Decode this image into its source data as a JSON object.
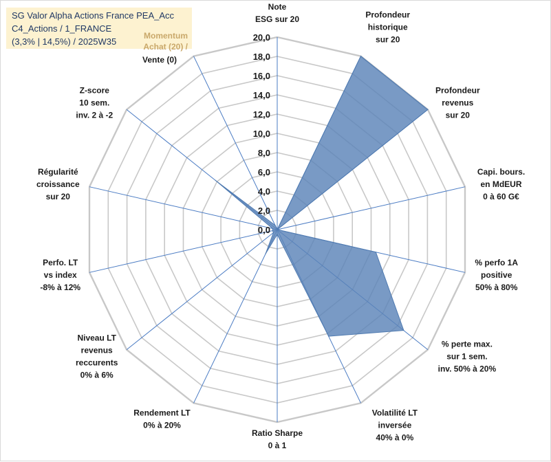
{
  "title": {
    "line1": "SG Valor Alpha Actions France PEA_Acc",
    "line2": "C4_Actions / 1_FRANCE",
    "line3": "(3,3% | 14,5%) / 2025W35",
    "tag1": "Momentum",
    "tag2": "Achat (20) /",
    "tag3": "Vente (0)"
  },
  "colors": {
    "fill": "#5b84b8",
    "stroke": "#4f7ab0",
    "grid": "#c8c8c8",
    "spoke": "#4a7bc3"
  },
  "chart_data": {
    "type": "radar",
    "r_ticks": [
      "0,0",
      "2,0",
      "4,0",
      "6,0",
      "8,0",
      "10,0",
      "12,0",
      "14,0",
      "16,0",
      "18,0",
      "20,0"
    ],
    "r_max": 20,
    "grid": true,
    "axes": [
      {
        "label": [
          "Note",
          "ESG sur 20"
        ]
      },
      {
        "label": [
          "Profondeur",
          "historique",
          "sur 20"
        ]
      },
      {
        "label": [
          "Profondeur",
          "revenus",
          "sur 20"
        ]
      },
      {
        "label": [
          "Capi. bours.",
          "en MdEUR",
          "0 à 60 G€"
        ]
      },
      {
        "label": [
          "% perfo 1A",
          "positive",
          "50% à 80%"
        ]
      },
      {
        "label": [
          "% perte max.",
          "sur 1 sem.",
          "inv. 50% à 20%"
        ]
      },
      {
        "label": [
          "Volatilité LT",
          "inversée",
          "40% à 0%"
        ]
      },
      {
        "label": [
          "Ratio Sharpe",
          "0 à 1"
        ]
      },
      {
        "label": [
          "Rendement LT",
          "0% à 20%"
        ]
      },
      {
        "label": [
          "Niveau LT",
          "revenus",
          "reccurents",
          "0% à 6%"
        ]
      },
      {
        "label": [
          "Perfo. LT",
          "vs index",
          "-8% à 12%"
        ]
      },
      {
        "label": [
          "Régularité",
          "croissance",
          "sur 20"
        ]
      },
      {
        "label": [
          "Z-score",
          "10 sem.",
          "inv. 2 à -2"
        ]
      },
      {
        "label": []
      }
    ],
    "series": [
      {
        "values": [
          0,
          20,
          20,
          0,
          10.5,
          16.8,
          12.3,
          0.5,
          2.8,
          0.5,
          0.5,
          0.5,
          8.2,
          0.5
        ]
      }
    ]
  }
}
